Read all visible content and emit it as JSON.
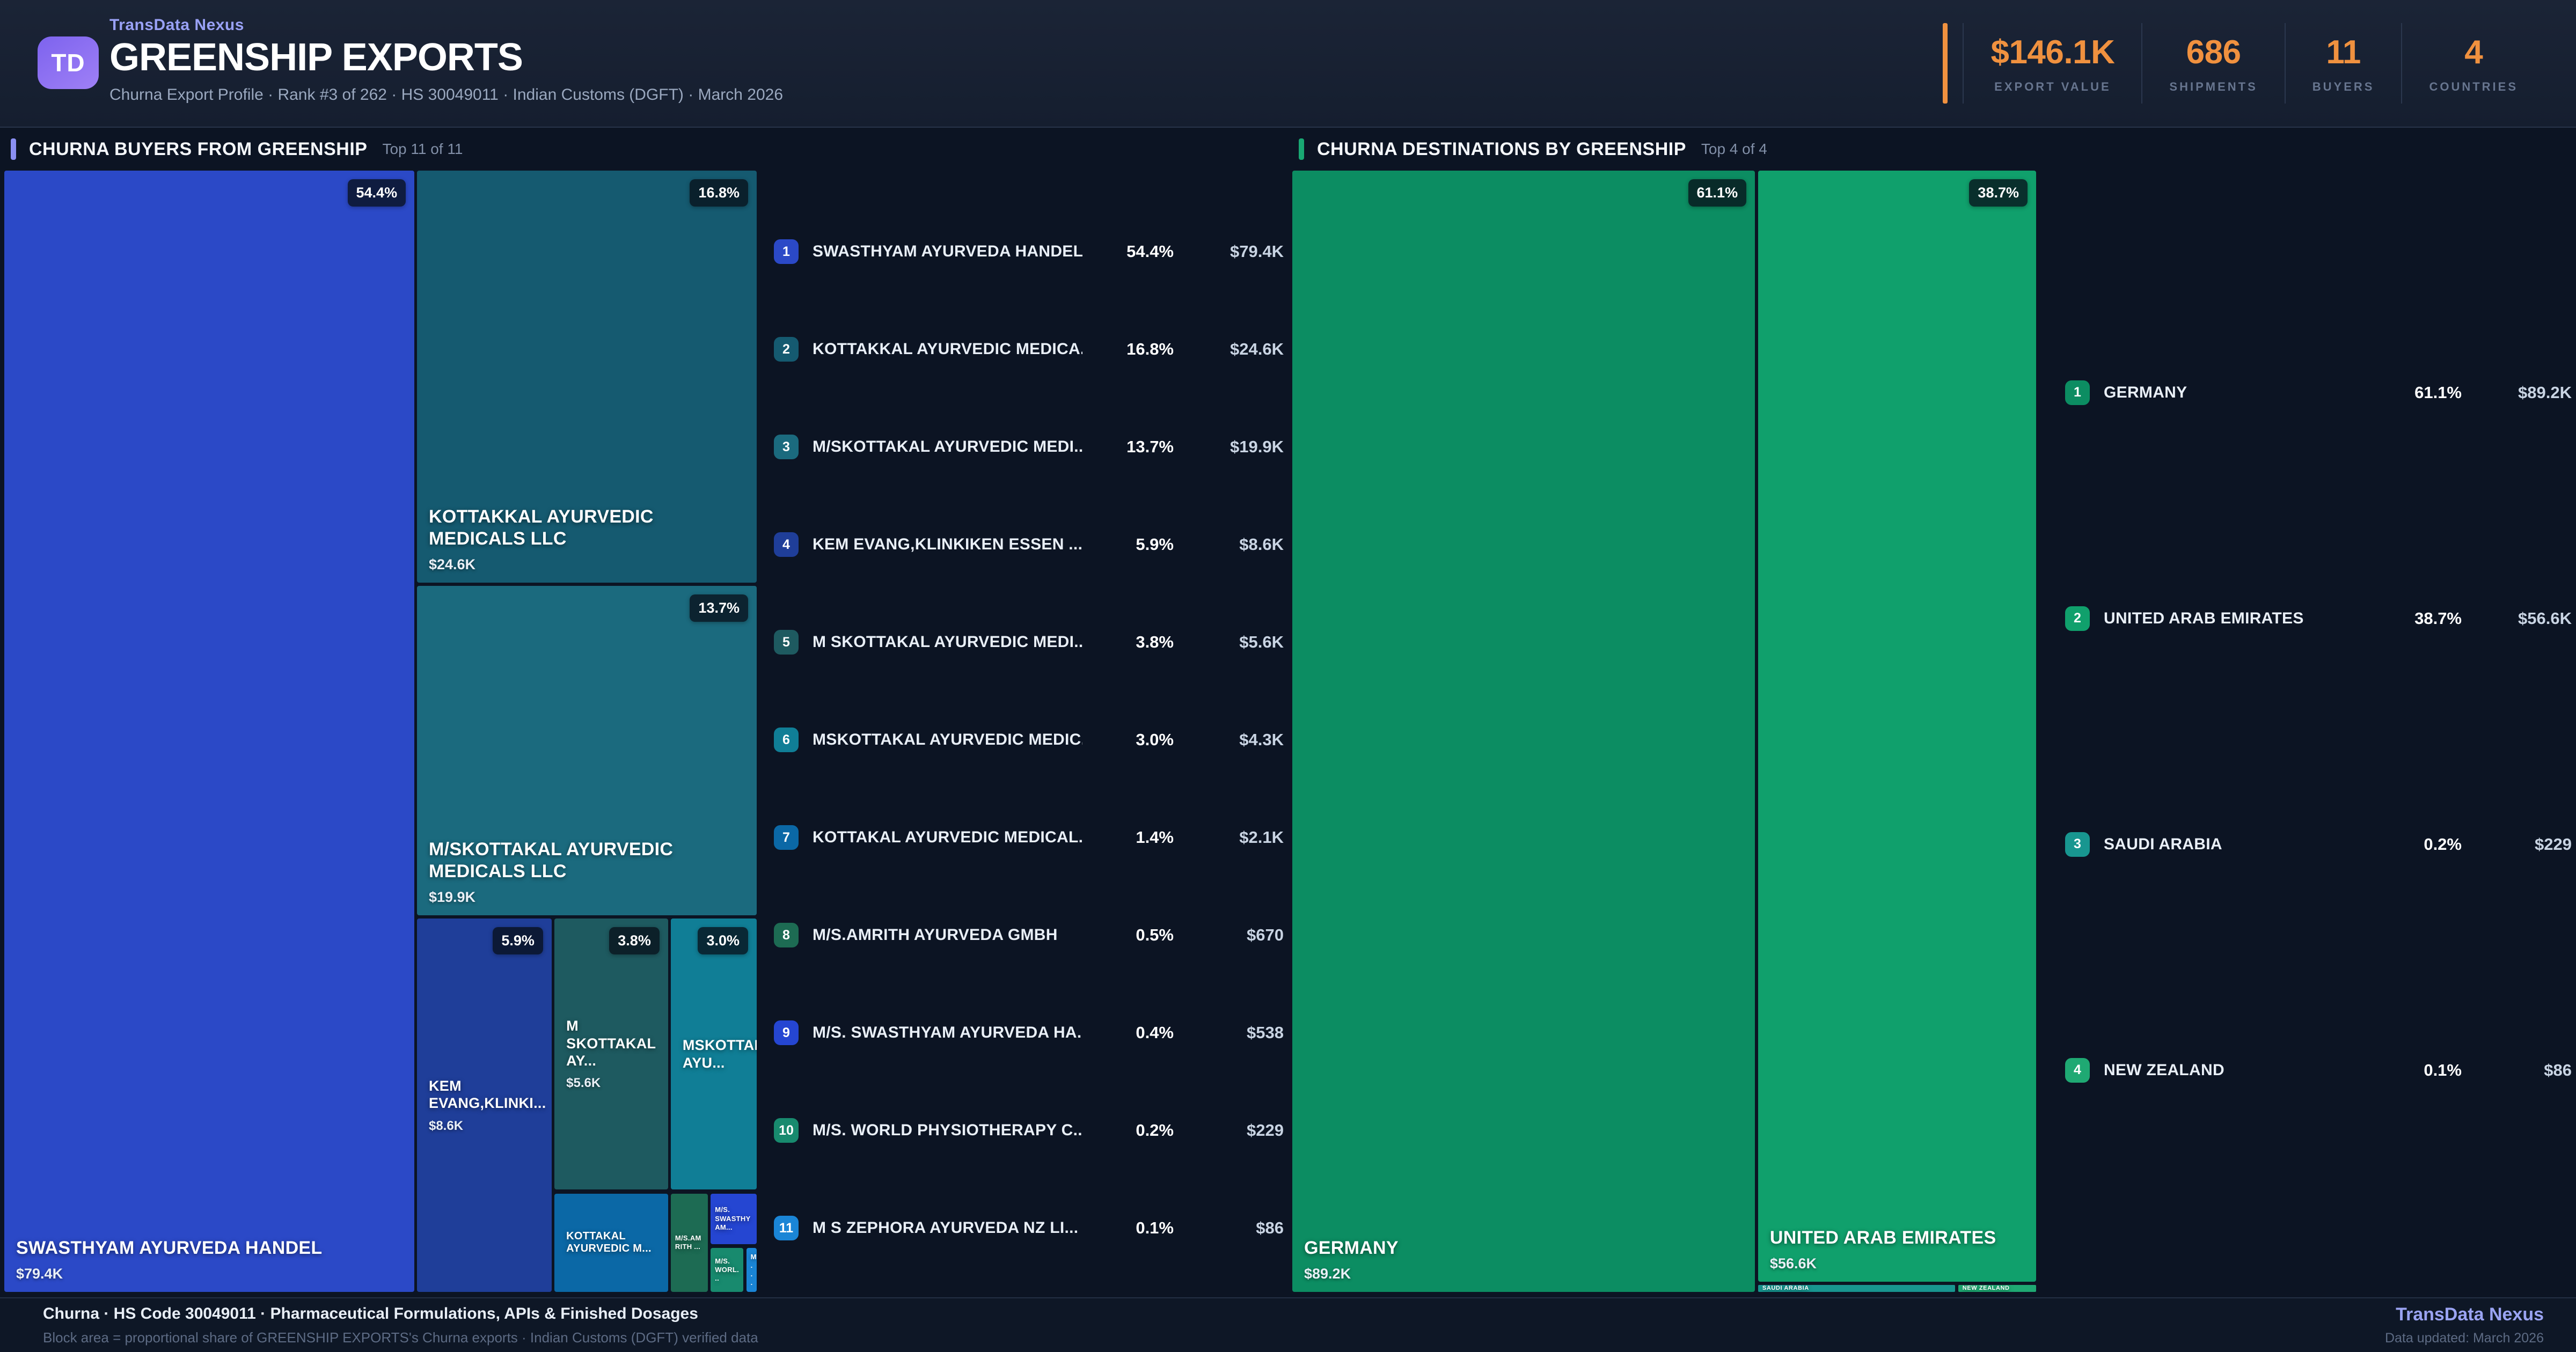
{
  "header": {
    "logo_text": "TD",
    "brand": "TransData Nexus",
    "title": "GREENSHIP EXPORTS",
    "subtitle": "Churna Export Profile · Rank #3 of 262 · HS 30049011 · Indian Customs (DGFT) · March 2026",
    "accent_color": "#f0913f",
    "stats": [
      {
        "value": "$146.1K",
        "label": "EXPORT VALUE"
      },
      {
        "value": "686",
        "label": "SHIPMENTS"
      },
      {
        "value": "11",
        "label": "BUYERS"
      },
      {
        "value": "4",
        "label": "COUNTRIES"
      }
    ]
  },
  "panels": [
    {
      "title": "CHURNA BUYERS FROM GREENSHIP",
      "top_label": "Top 11 of 11",
      "accent": "#8a8ff2",
      "list": [
        {
          "rank": "1",
          "name": "SWASTHYAM AYURVEDA HANDEL",
          "pct": "54.4%",
          "value": "$79.4K",
          "color": "#2b49c7"
        },
        {
          "rank": "2",
          "name": "KOTTAKKAL AYURVEDIC MEDICA...",
          "pct": "16.8%",
          "value": "$24.6K",
          "color": "#155a70"
        },
        {
          "rank": "3",
          "name": "M/SKOTTAKAL AYURVEDIC MEDI...",
          "pct": "13.7%",
          "value": "$19.9K",
          "color": "#1b6a7e"
        },
        {
          "rank": "4",
          "name": "KEM EVANG,KLINKIKEN ESSEN ...",
          "pct": "5.9%",
          "value": "$8.6K",
          "color": "#1f3e99"
        },
        {
          "rank": "5",
          "name": "M SKOTTAKAL AYURVEDIC MEDI...",
          "pct": "3.8%",
          "value": "$5.6K",
          "color": "#1e5a60"
        },
        {
          "rank": "6",
          "name": "MSKOTTAKAL AYURVEDIC MEDIC...",
          "pct": "3.0%",
          "value": "$4.3K",
          "color": "#107e96"
        },
        {
          "rank": "7",
          "name": "KOTTAKAL AYURVEDIC MEDICAL...",
          "pct": "1.4%",
          "value": "$2.1K",
          "color": "#0b68a6"
        },
        {
          "rank": "8",
          "name": "M/S.AMRITH AYURVEDA GMBH",
          "pct": "0.5%",
          "value": "$670",
          "color": "#1d6b53"
        },
        {
          "rank": "9",
          "name": "M/S. SWASTHYAM AYURVEDA HA...",
          "pct": "0.4%",
          "value": "$538",
          "color": "#2546d2"
        },
        {
          "rank": "10",
          "name": "M/S. WORLD PHYSIOTHERAPY C...",
          "pct": "0.2%",
          "value": "$229",
          "color": "#188a6e"
        },
        {
          "rank": "11",
          "name": "M S ZEPHORA AYURVEDA NZ LI...",
          "pct": "0.1%",
          "value": "$86",
          "color": "#1a85d6"
        }
      ]
    },
    {
      "title": "CHURNA DESTINATIONS BY GREENSHIP",
      "top_label": "Top 4 of 4",
      "accent": "#19a873",
      "list": [
        {
          "rank": "1",
          "name": "GERMANY",
          "pct": "61.1%",
          "value": "$89.2K",
          "color": "#0c8d62"
        },
        {
          "rank": "2",
          "name": "UNITED ARAB EMIRATES",
          "pct": "38.7%",
          "value": "$56.6K",
          "color": "#10a06c"
        },
        {
          "rank": "3",
          "name": "SAUDI ARABIA",
          "pct": "0.2%",
          "value": "$229",
          "color": "#189690"
        },
        {
          "rank": "4",
          "name": "NEW ZEALAND",
          "pct": "0.1%",
          "value": "$86",
          "color": "#1fa973"
        }
      ]
    }
  ],
  "chart_data": [
    {
      "type": "treemap",
      "title": "CHURNA BUYERS FROM GREENSHIP",
      "note": "Block area = proportional share of value; values in USD",
      "blocks": [
        {
          "name": "SWASTHYAM AYURVEDA HANDEL",
          "label": "SWASTHYAM AYURVEDA HANDEL",
          "value": 79400,
          "value_label": "$79.4K",
          "pct": 54.4,
          "pct_label": "54.4%",
          "color": "#2b49c7",
          "size": "lg",
          "label_style": "bottom",
          "show_badge": true,
          "show_value": true,
          "rect": {
            "l": 0,
            "t": 0,
            "w": 54.5,
            "h": 100
          }
        },
        {
          "name": "KOTTAKKAL AYURVEDIC MEDICALS LLC",
          "label": "KOTTAKKAL AYURVEDIC MEDICALS LLC",
          "value": 24600,
          "value_label": "$24.6K",
          "pct": 16.8,
          "pct_label": "16.8%",
          "color": "#155a70",
          "size": "lg",
          "label_style": "bottom",
          "show_badge": true,
          "show_value": true,
          "rect": {
            "l": 54.85,
            "t": 0,
            "w": 45.15,
            "h": 36.75
          }
        },
        {
          "name": "M/SKOTTAKAL AYURVEDIC MEDICALS LLC",
          "label": "M/SKOTTAKAL AYURVEDIC MEDICALS LLC",
          "value": 19900,
          "value_label": "$19.9K",
          "pct": 13.7,
          "pct_label": "13.7%",
          "color": "#1b6a7e",
          "size": "lg",
          "label_style": "bottom",
          "show_badge": true,
          "show_value": true,
          "rect": {
            "l": 54.85,
            "t": 37.05,
            "w": 45.15,
            "h": 29.35
          }
        },
        {
          "name": "KEM EVANG,KLINKIKEN ESSEN",
          "label": "KEM EVANG,KLINKI...",
          "value": 8600,
          "value_label": "$8.6K",
          "pct": 5.9,
          "pct_label": "5.9%",
          "color": "#1f3e99",
          "size": "md",
          "label_style": "center",
          "show_badge": true,
          "show_value": true,
          "rect": {
            "l": 54.85,
            "t": 66.72,
            "w": 17.9,
            "h": 33.28
          }
        },
        {
          "name": "M SKOTTAKAL AYURVEDIC MEDICALS",
          "label": "M SKOTTAKAL AY...",
          "value": 5600,
          "value_label": "$5.6K",
          "pct": 3.8,
          "pct_label": "3.8%",
          "color": "#1e5a60",
          "size": "md",
          "label_style": "center",
          "show_badge": true,
          "show_value": true,
          "rect": {
            "l": 73.12,
            "t": 66.72,
            "w": 15.1,
            "h": 24.15
          }
        },
        {
          "name": "MSKOTTAKAL AYURVEDIC MEDICALS",
          "label": "MSKOTTAKAL AYU...",
          "value": 4300,
          "value_label": "$4.3K",
          "pct": 3.0,
          "pct_label": "3.0%",
          "color": "#107e96",
          "size": "md",
          "label_style": "center",
          "show_badge": true,
          "show_value": false,
          "rect": {
            "l": 88.58,
            "t": 66.72,
            "w": 11.42,
            "h": 24.15
          }
        },
        {
          "name": "KOTTAKAL AYURVEDIC MEDICALS",
          "label": "KOTTAKAL AYURVEDIC M...",
          "value": 2100,
          "value_label": "$2.1K",
          "pct": 1.4,
          "pct_label": "1.4%",
          "color": "#0b68a6",
          "size": "sm",
          "label_style": "center",
          "show_badge": false,
          "show_value": false,
          "rect": {
            "l": 73.12,
            "t": 91.23,
            "w": 15.08,
            "h": 8.77
          }
        },
        {
          "name": "M/S.AMRITH AYURVEDA GMBH",
          "label": "M/S.AMRITH ...",
          "value": 670,
          "value_label": "$670",
          "pct": 0.5,
          "pct_label": "0.5%",
          "color": "#1d6b53",
          "size": "xs",
          "label_style": "center",
          "show_badge": false,
          "show_value": false,
          "rect": {
            "l": 88.58,
            "t": 91.23,
            "w": 4.92,
            "h": 8.77
          }
        },
        {
          "name": "M/S. SWASTHYAM AYURVEDA HANDEL",
          "label": "M/S. SWASTHYAM...",
          "value": 538,
          "value_label": "$538",
          "pct": 0.4,
          "pct_label": "0.4%",
          "color": "#2546d2",
          "size": "xs",
          "label_style": "center",
          "show_badge": false,
          "show_value": false,
          "rect": {
            "l": 93.88,
            "t": 91.23,
            "w": 6.12,
            "h": 4.5
          }
        },
        {
          "name": "M/S. WORLD PHYSIOTHERAPY",
          "label": "M/S. WORL...",
          "value": 229,
          "value_label": "$229",
          "pct": 0.2,
          "pct_label": "0.2%",
          "color": "#188a6e",
          "size": "xs",
          "label_style": "center",
          "show_badge": false,
          "show_value": false,
          "rect": {
            "l": 93.88,
            "t": 96.08,
            "w": 4.35,
            "h": 3.92
          }
        },
        {
          "name": "M S ZEPHORA AYURVEDA NZ LIMITED",
          "label": "M ...",
          "value": 86,
          "value_label": "$86",
          "pct": 0.1,
          "pct_label": "0.1%",
          "color": "#1a85d6",
          "size": "xs",
          "label_style": "center",
          "show_badge": false,
          "show_value": false,
          "rect": {
            "l": 98.62,
            "t": 96.08,
            "w": 1.38,
            "h": 3.92
          }
        }
      ]
    },
    {
      "type": "treemap",
      "title": "CHURNA DESTINATIONS BY GREENSHIP",
      "note": "Block area = proportional share of value; values in USD",
      "blocks": [
        {
          "name": "GERMANY",
          "label": "GERMANY",
          "value": 89200,
          "value_label": "$89.2K",
          "pct": 61.1,
          "pct_label": "61.1%",
          "color": "#0c8d62",
          "size": "lg",
          "label_style": "bottom",
          "show_badge": true,
          "show_value": true,
          "rect": {
            "l": 0,
            "t": 0,
            "w": 62.2,
            "h": 100
          }
        },
        {
          "name": "UNITED ARAB EMIRATES",
          "label": "UNITED ARAB EMIRATES",
          "value": 56600,
          "value_label": "$56.6K",
          "pct": 38.7,
          "pct_label": "38.7%",
          "color": "#10a06c",
          "size": "lg",
          "label_style": "bottom",
          "show_badge": true,
          "show_value": true,
          "rect": {
            "l": 62.62,
            "t": 0,
            "w": 37.38,
            "h": 99.08
          }
        },
        {
          "name": "SAUDI ARABIA",
          "label": "SAUDI ARABIA",
          "value": 229,
          "value_label": "$229",
          "pct": 0.2,
          "pct_label": "0.2%",
          "color": "#189690",
          "size": "strip",
          "label_style": "center",
          "show_badge": false,
          "show_value": false,
          "rect": {
            "l": 62.62,
            "t": 99.38,
            "w": 26.48,
            "h": 0.62
          }
        },
        {
          "name": "NEW ZEALAND",
          "label": "NEW ZEALAND",
          "value": 86,
          "value_label": "$86",
          "pct": 0.1,
          "pct_label": "0.1%",
          "color": "#1fa973",
          "size": "strip",
          "label_style": "center",
          "show_badge": false,
          "show_value": false,
          "rect": {
            "l": 89.52,
            "t": 99.38,
            "w": 10.48,
            "h": 0.62
          }
        }
      ]
    }
  ],
  "footer": {
    "line1": "Churna · HS Code 30049011 · Pharmaceutical Formulations, APIs & Finished Dosages",
    "line2": "Block area = proportional share of GREENSHIP EXPORTS's Churna exports · Indian Customs (DGFT) verified data",
    "brand": "TransData Nexus",
    "updated": "Data updated: March 2026"
  }
}
